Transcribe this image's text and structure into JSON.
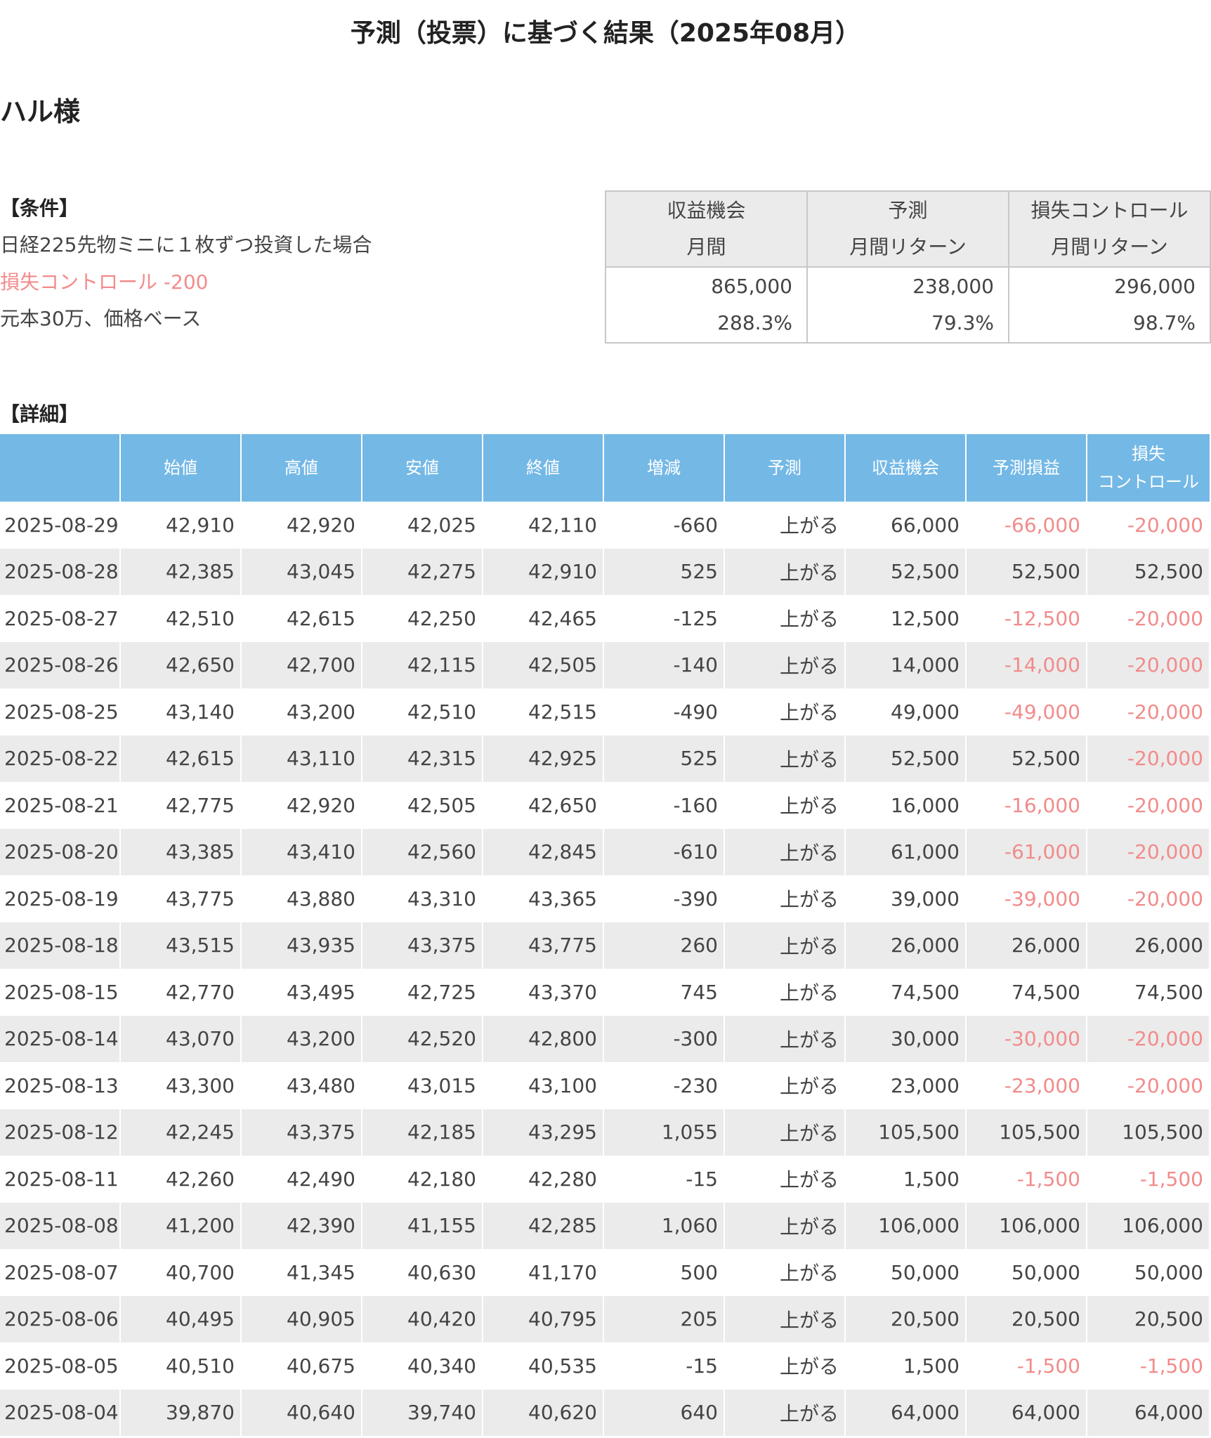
{
  "title": "予測（投票）に基づく結果（2025年08月）",
  "user": "ハル様",
  "conditions": {
    "heading": "【条件】",
    "line1": "日経225先物ミニに１枚ずつ投資した場合",
    "line2": "損失コントロール -200",
    "line3": "元本30万、価格ベース"
  },
  "summary": {
    "headers": [
      {
        "line1": "収益機会",
        "line2": "月間"
      },
      {
        "line1": "予測",
        "line2": "月間リターン"
      },
      {
        "line1": "損失コントロール",
        "line2": "月間リターン"
      }
    ],
    "amounts": [
      "865,000",
      "238,000",
      "296,000"
    ],
    "percents": [
      "288.3%",
      "79.3%",
      "98.7%"
    ]
  },
  "detail": {
    "heading": "【詳細】",
    "columns": [
      "",
      "始値",
      "高値",
      "安値",
      "終値",
      "増減",
      "予測",
      "収益機会",
      "予測損益",
      "損失",
      "コントロール"
    ],
    "rows": [
      [
        "2025-08-29",
        "42,910",
        "42,920",
        "42,025",
        "42,110",
        "-660",
        "上がる",
        "66,000",
        "-66,000",
        "-20,000"
      ],
      [
        "2025-08-28",
        "42,385",
        "43,045",
        "42,275",
        "42,910",
        "525",
        "上がる",
        "52,500",
        "52,500",
        "52,500"
      ],
      [
        "2025-08-27",
        "42,510",
        "42,615",
        "42,250",
        "42,465",
        "-125",
        "上がる",
        "12,500",
        "-12,500",
        "-20,000"
      ],
      [
        "2025-08-26",
        "42,650",
        "42,700",
        "42,115",
        "42,505",
        "-140",
        "上がる",
        "14,000",
        "-14,000",
        "-20,000"
      ],
      [
        "2025-08-25",
        "43,140",
        "43,200",
        "42,510",
        "42,515",
        "-490",
        "上がる",
        "49,000",
        "-49,000",
        "-20,000"
      ],
      [
        "2025-08-22",
        "42,615",
        "43,110",
        "42,315",
        "42,925",
        "525",
        "上がる",
        "52,500",
        "52,500",
        "-20,000"
      ],
      [
        "2025-08-21",
        "42,775",
        "42,920",
        "42,505",
        "42,650",
        "-160",
        "上がる",
        "16,000",
        "-16,000",
        "-20,000"
      ],
      [
        "2025-08-20",
        "43,385",
        "43,410",
        "42,560",
        "42,845",
        "-610",
        "上がる",
        "61,000",
        "-61,000",
        "-20,000"
      ],
      [
        "2025-08-19",
        "43,775",
        "43,880",
        "43,310",
        "43,365",
        "-390",
        "上がる",
        "39,000",
        "-39,000",
        "-20,000"
      ],
      [
        "2025-08-18",
        "43,515",
        "43,935",
        "43,375",
        "43,775",
        "260",
        "上がる",
        "26,000",
        "26,000",
        "26,000"
      ],
      [
        "2025-08-15",
        "42,770",
        "43,495",
        "42,725",
        "43,370",
        "745",
        "上がる",
        "74,500",
        "74,500",
        "74,500"
      ],
      [
        "2025-08-14",
        "43,070",
        "43,200",
        "42,520",
        "42,800",
        "-300",
        "上がる",
        "30,000",
        "-30,000",
        "-20,000"
      ],
      [
        "2025-08-13",
        "43,300",
        "43,480",
        "43,015",
        "43,100",
        "-230",
        "上がる",
        "23,000",
        "-23,000",
        "-20,000"
      ],
      [
        "2025-08-12",
        "42,245",
        "43,375",
        "42,185",
        "43,295",
        "1,055",
        "上がる",
        "105,500",
        "105,500",
        "105,500"
      ],
      [
        "2025-08-11",
        "42,260",
        "42,490",
        "42,180",
        "42,280",
        "-15",
        "上がる",
        "1,500",
        "-1,500",
        "-1,500"
      ],
      [
        "2025-08-08",
        "41,200",
        "42,390",
        "41,155",
        "42,285",
        "1,060",
        "上がる",
        "106,000",
        "106,000",
        "106,000"
      ],
      [
        "2025-08-07",
        "40,700",
        "41,345",
        "40,630",
        "41,170",
        "500",
        "上がる",
        "50,000",
        "50,000",
        "50,000"
      ],
      [
        "2025-08-06",
        "40,495",
        "40,905",
        "40,420",
        "40,795",
        "205",
        "上がる",
        "20,500",
        "20,500",
        "20,500"
      ],
      [
        "2025-08-05",
        "40,510",
        "40,675",
        "40,340",
        "40,535",
        "-15",
        "上がる",
        "1,500",
        "-1,500",
        "-1,500"
      ],
      [
        "2025-08-04",
        "39,870",
        "40,640",
        "39,740",
        "40,620",
        "640",
        "上がる",
        "64,000",
        "64,000",
        "64,000"
      ]
    ]
  },
  "colors": {
    "header_bg": "#74b8e6",
    "negative": "#f28b8b",
    "stripe": "#ebebeb"
  }
}
